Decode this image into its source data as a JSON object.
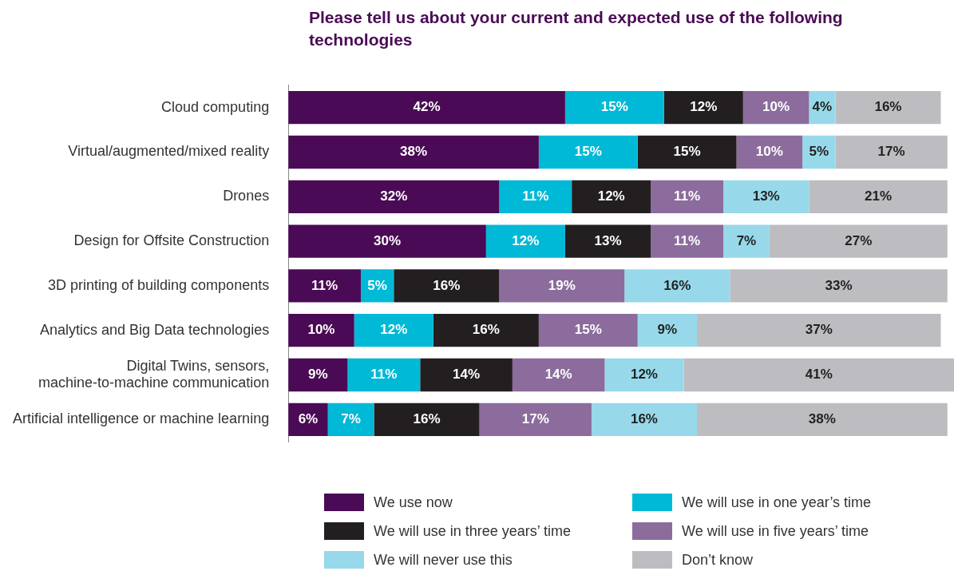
{
  "chart_data": {
    "type": "bar",
    "orientation": "horizontal",
    "stacked": true,
    "title": "Please tell us about your current and expected use of the following technologies",
    "categories": [
      "Cloud computing",
      "Virtual/augmented/mixed reality",
      "Drones",
      "Design for Offsite Construction",
      "3D printing of building components",
      "Analytics and Big Data technologies",
      "Digital Twins, sensors,\nmachine-to-machine communication",
      "Artificial intelligence or machine learning"
    ],
    "series": [
      {
        "name": "We use now",
        "color": "#4a0a55",
        "values": [
          42,
          38,
          32,
          30,
          11,
          10,
          9,
          6
        ],
        "value_labels": [
          "42%",
          "38%",
          "32%",
          "30%",
          "11%",
          "10%",
          "9%",
          "6%"
        ]
      },
      {
        "name": "We will use in one year’s time",
        "color": "#00b9d6",
        "values": [
          15,
          15,
          11,
          12,
          5,
          12,
          11,
          7
        ],
        "value_labels": [
          "15%",
          "15%",
          "11%",
          "12%",
          "5%",
          "12%",
          "11%",
          "7%"
        ]
      },
      {
        "name": "We will use in three years’ time",
        "color": "#231f20",
        "values": [
          12,
          15,
          12,
          13,
          16,
          16,
          14,
          16
        ],
        "value_labels": [
          "12%",
          "15%",
          "12%",
          "13%",
          "16%",
          "16%",
          "14%",
          "16%"
        ]
      },
      {
        "name": "We will use in five years’ time",
        "color": "#8b6c9c",
        "values": [
          10,
          10,
          11,
          11,
          19,
          15,
          14,
          17
        ],
        "value_labels": [
          "10%",
          "10%",
          "11%",
          "11%",
          "19%",
          "15%",
          "14%",
          "17%"
        ]
      },
      {
        "name": "We will never use this",
        "color": "#97d9ea",
        "values": [
          4,
          5,
          13,
          7,
          16,
          9,
          12,
          16
        ],
        "value_labels": [
          "4%",
          "5%",
          "13%",
          "7%",
          "16%",
          "9%",
          "12%",
          "16%"
        ]
      },
      {
        "name": "Don’t know",
        "color": "#bdbdc1",
        "values": [
          16,
          17,
          21,
          27,
          33,
          37,
          41,
          38
        ],
        "value_labels": [
          "16%",
          "17%",
          "21%",
          "27%",
          "33%",
          "37%",
          "41%",
          "38%"
        ]
      }
    ],
    "legend": "bottom"
  }
}
